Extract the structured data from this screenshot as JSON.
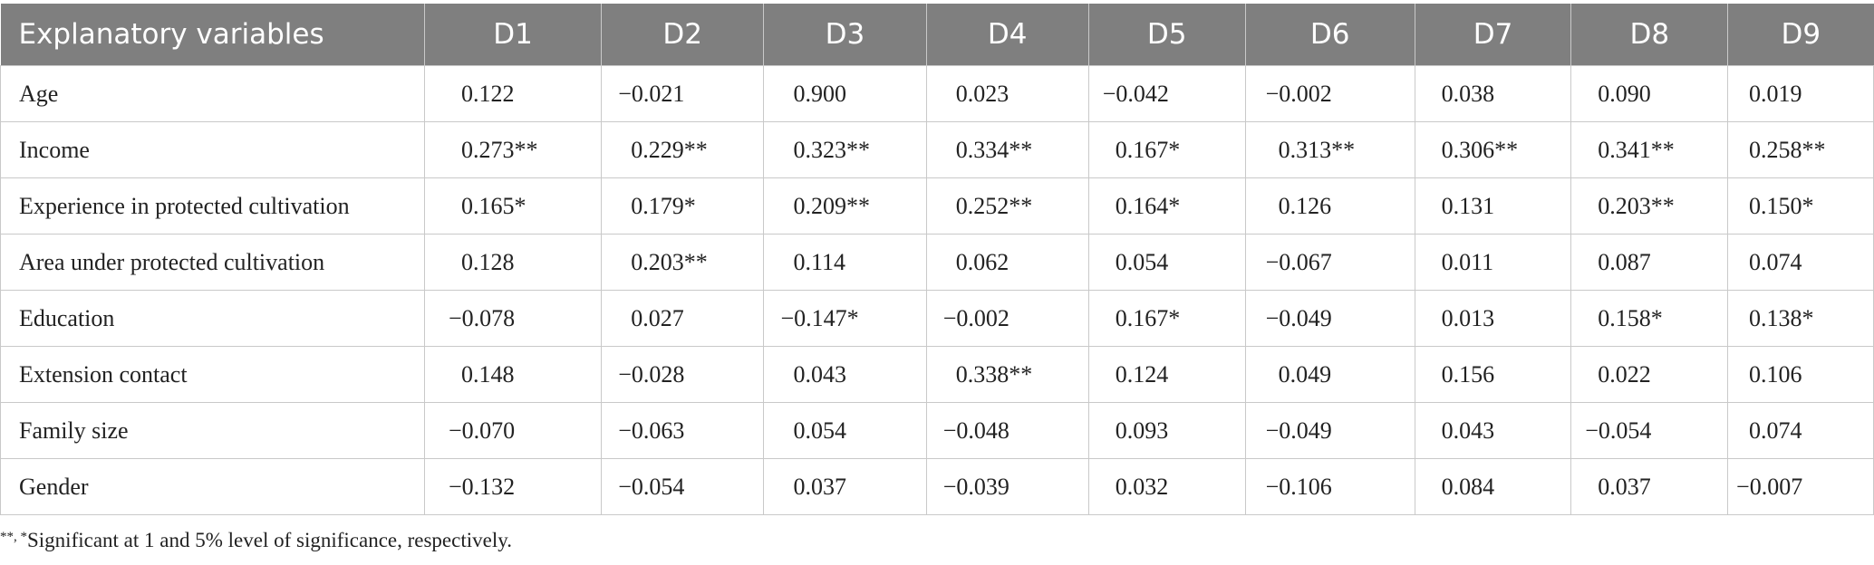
{
  "columns": [
    "Explanatory variables",
    "D1",
    "D2",
    "D3",
    "D4",
    "D5",
    "D6",
    "D7",
    "D8",
    "D9"
  ],
  "rows": [
    {
      "label": "Age",
      "values": [
        "0.122",
        "−0.021",
        "0.900",
        "0.023",
        "−0.042",
        "−0.002",
        "0.038",
        "0.090",
        "0.019"
      ]
    },
    {
      "label": "Income",
      "values": [
        "0.273**",
        "0.229**",
        "0.323**",
        "0.334**",
        "0.167*",
        "0.313**",
        "0.306**",
        "0.341**",
        "0.258**"
      ]
    },
    {
      "label": "Experience in protected cultivation",
      "values": [
        "0.165*",
        "0.179*",
        "0.209**",
        "0.252**",
        "0.164*",
        "0.126",
        "0.131",
        "0.203**",
        "0.150*"
      ]
    },
    {
      "label": "Area under protected cultivation",
      "values": [
        "0.128",
        "0.203**",
        "0.114",
        "0.062",
        "0.054",
        "−0.067",
        "0.011",
        "0.087",
        "0.074"
      ]
    },
    {
      "label": "Education",
      "values": [
        "−0.078",
        "0.027",
        "−0.147*",
        "−0.002",
        "0.167*",
        "−0.049",
        "0.013",
        "0.158*",
        "0.138*"
      ]
    },
    {
      "label": "Extension contact",
      "values": [
        "0.148",
        "−0.028",
        "0.043",
        "0.338**",
        "0.124",
        "0.049",
        "0.156",
        "0.022",
        "0.106"
      ]
    },
    {
      "label": "Family size",
      "values": [
        "−0.070",
        "−0.063",
        "0.054",
        "−0.048",
        "0.093",
        "−0.049",
        "0.043",
        "−0.054",
        "0.074"
      ]
    },
    {
      "label": "Gender",
      "values": [
        "−0.132",
        "−0.054",
        "0.037",
        "−0.039",
        "0.032",
        "−0.106",
        "0.084",
        "0.037",
        "−0.007"
      ]
    }
  ],
  "footnote": {
    "marker": "**, *",
    "text": "Significant at 1 and 5% level of significance, respectively."
  }
}
